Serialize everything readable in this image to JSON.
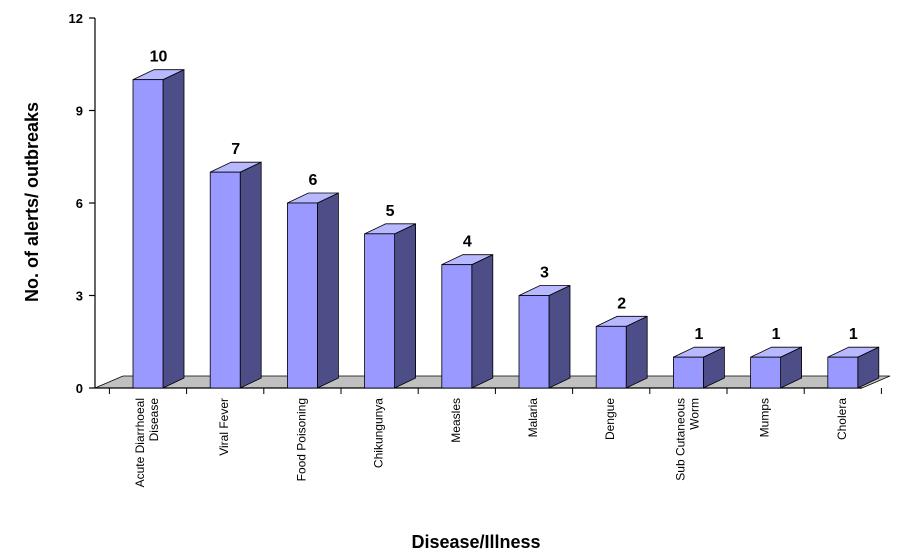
{
  "chart_data": {
    "type": "bar",
    "title": "",
    "xlabel": "Disease/Illness",
    "ylabel": "No. of alerts/ outbreaks",
    "ylim": [
      0,
      12
    ],
    "yticks": [
      "0",
      "3",
      "6",
      "9",
      "12"
    ],
    "categories": [
      "Acute Diarrhoeal Disease",
      "Viral Fever",
      "Food Poisoning",
      "Chikungunya",
      "Measles",
      "Malaria",
      "Dengue",
      "Sub Cutaneous Worm",
      "Mumps",
      "Cholera"
    ],
    "category_lines": [
      [
        "Acute Diarrhoeal",
        "Disease"
      ],
      [
        "Viral Fever"
      ],
      [
        "Food Poisoning"
      ],
      [
        "Chikungunya"
      ],
      [
        "Measles"
      ],
      [
        "Malaria"
      ],
      [
        "Dengue"
      ],
      [
        "Sub Cutaneous",
        "Worm"
      ],
      [
        "Mumps"
      ],
      [
        "Cholera"
      ]
    ],
    "values": [
      10,
      7,
      6,
      5,
      4,
      3,
      2,
      1,
      1,
      1
    ],
    "data_labels": [
      "10",
      "7",
      "6",
      "5",
      "4",
      "3",
      "2",
      "1",
      "1",
      "1"
    ],
    "grid": false,
    "style": "3d-columns",
    "colors": {
      "bar_front": "#9999ff",
      "bar_side": "#4d4d88",
      "bar_top": "#b8b8ff",
      "floor": "#c0c0c0"
    }
  }
}
